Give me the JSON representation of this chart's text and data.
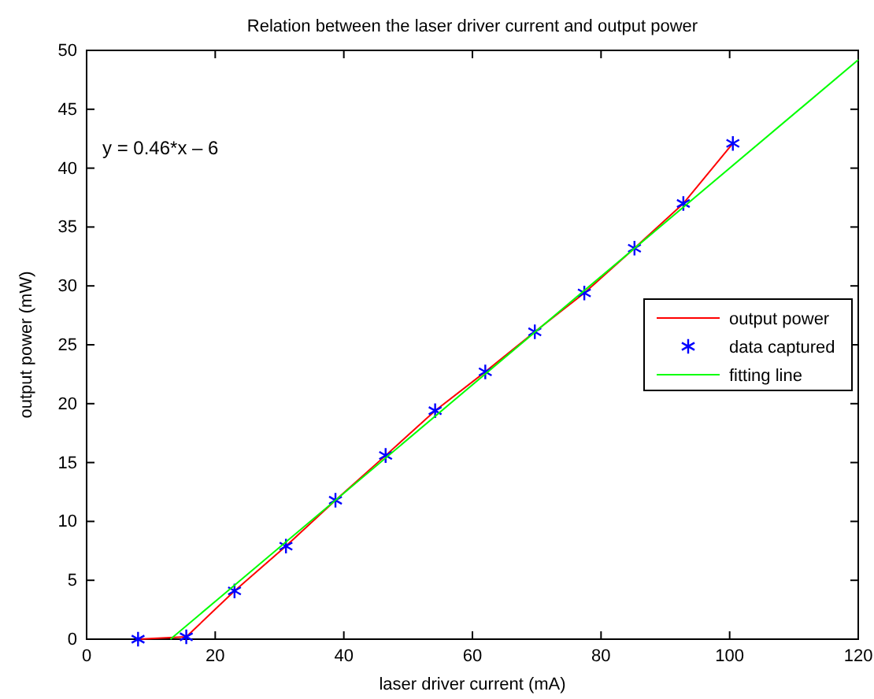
{
  "chart_data": {
    "type": "line",
    "title": "Relation between the laser driver current and output power",
    "xlabel": "laser driver current (mA)",
    "ylabel": "output power (mW)",
    "xlim": [
      0,
      120
    ],
    "xticks": [
      0,
      20,
      40,
      60,
      80,
      100,
      120
    ],
    "ylim": [
      0,
      50
    ],
    "yticks": [
      0,
      5,
      10,
      15,
      20,
      25,
      30,
      35,
      40,
      45,
      50
    ],
    "grid": false,
    "legend": "right",
    "annotations": [
      "y = 0.46*x – 6"
    ],
    "series": [
      {
        "name": "output power",
        "color": "#ff0000",
        "marker": "none",
        "x": [
          8,
          15.5,
          23,
          31,
          38.7,
          46.5,
          54.2,
          62,
          69.7,
          77.4,
          85.2,
          92.8,
          100.5
        ],
        "values": [
          0,
          0.2,
          4.1,
          7.9,
          11.8,
          15.6,
          19.4,
          22.7,
          26.1,
          29.4,
          33.2,
          37,
          42.1
        ]
      },
      {
        "name": "data captured",
        "type": "scatter",
        "color": "#0000ff",
        "marker": "cross",
        "x": [
          8,
          15.5,
          23,
          31,
          38.7,
          46.5,
          54.2,
          62,
          69.7,
          77.4,
          85.2,
          92.8,
          100.5
        ],
        "values": [
          0,
          0.2,
          4.1,
          7.9,
          11.8,
          15.6,
          19.4,
          22.7,
          26.1,
          29.4,
          33.2,
          37,
          42.1
        ]
      },
      {
        "name": "fitting line",
        "type": "line",
        "color": "#00ff00",
        "marker": "none",
        "x": [
          13.04,
          120
        ],
        "values": [
          0,
          49.2
        ]
      }
    ]
  }
}
